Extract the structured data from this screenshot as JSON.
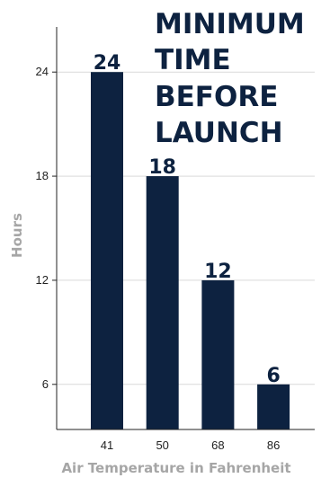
{
  "chart_data": {
    "type": "bar",
    "title_lines": [
      "MINIMUM",
      "TIME",
      "BEFORE",
      "LAUNCH"
    ],
    "categories": [
      "41",
      "50",
      "68",
      "86"
    ],
    "values": [
      24,
      18,
      12,
      6
    ],
    "data_labels": [
      "24",
      "18",
      "12",
      "6"
    ],
    "xlabel": "Air Temperature in Fahrenheit",
    "ylabel": "Hours",
    "yticks": [
      "6",
      "12",
      "18",
      "24"
    ],
    "ytick_values": [
      6,
      12,
      18,
      24
    ],
    "ylim": [
      3.4,
      26.6
    ],
    "grid": true,
    "bar_color": "#0d2240",
    "title_color": "#0d2240",
    "axis_title_color": "#a6a6a6"
  }
}
